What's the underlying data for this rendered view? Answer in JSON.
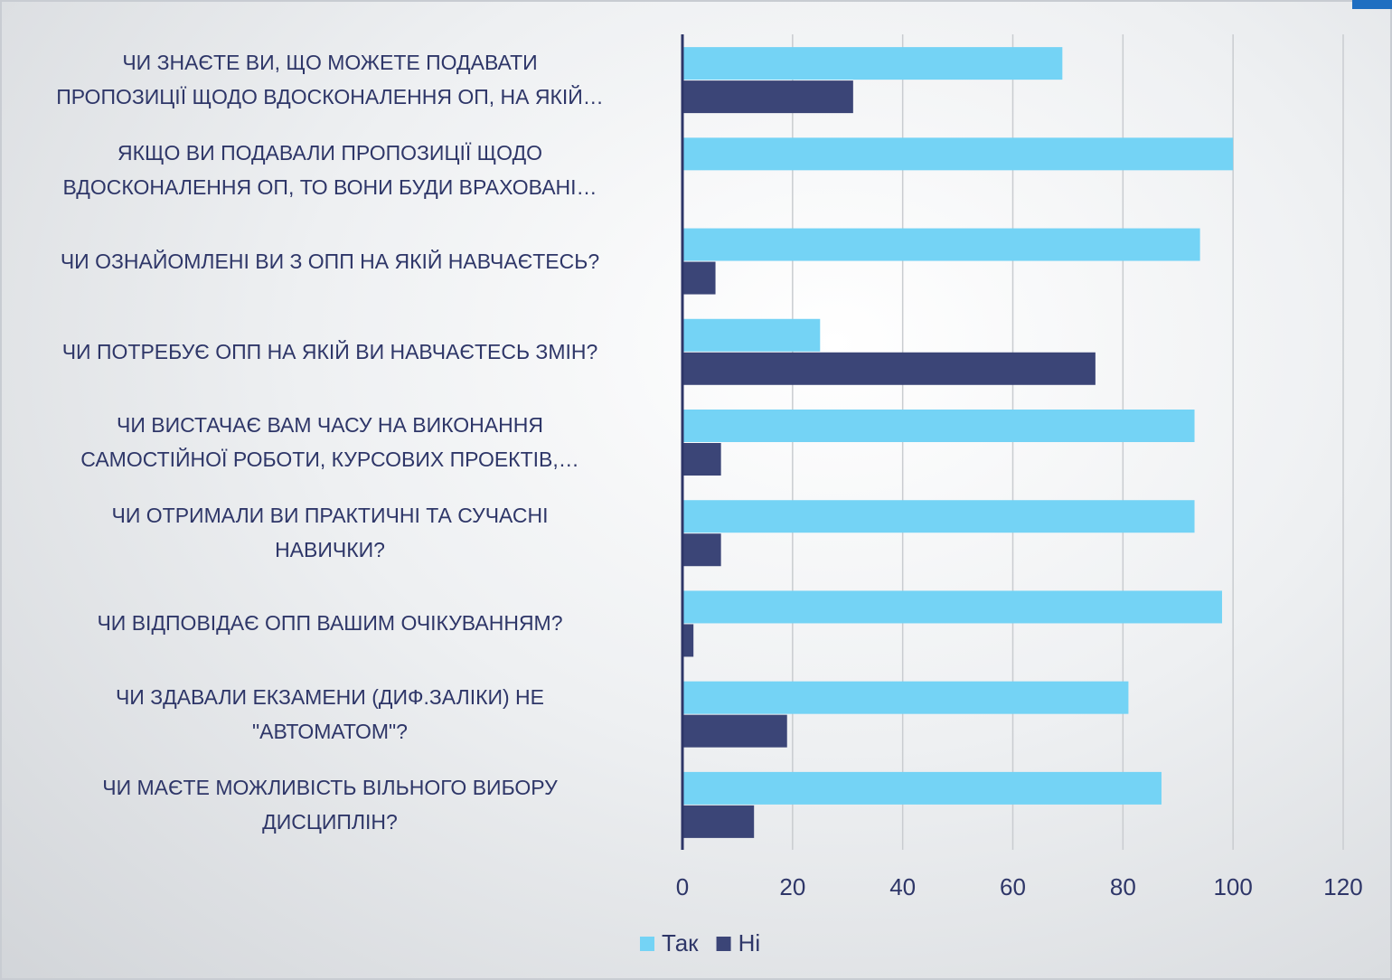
{
  "chart_data": {
    "type": "bar",
    "orientation": "horizontal",
    "categories": [
      "ЧИ ЗНАЄТЕ ВИ, ЩО МОЖЕТЕ ПОДАВАТИ\nПРОПОЗИЦІЇ ЩОДО ВДОСКОНАЛЕННЯ ОП, НА ЯКІЙ…",
      "ЯКЩО ВИ ПОДАВАЛИ ПРОПОЗИЦІЇ ЩОДО\nВДОСКОНАЛЕННЯ ОП, ТО ВОНИ БУДИ ВРАХОВАНІ…",
      "ЧИ ОЗНАЙОМЛЕНІ ВИ З ОПП НА ЯКІЙ НАВЧАЄТЕСЬ?",
      "ЧИ ПОТРЕБУЄ ОПП НА ЯКІЙ ВИ НАВЧАЄТЕСЬ ЗМІН?",
      "ЧИ ВИСТАЧАЄ ВАМ ЧАСУ НА ВИКОНАННЯ\nСАМОСТІЙНОЇ РОБОТИ, КУРСОВИХ ПРОЕКТІВ,…",
      "ЧИ ОТРИМАЛИ ВИ ПРАКТИЧНІ ТА СУЧАСНІ\nНАВИЧКИ?",
      "ЧИ ВІДПОВІДАЄ ОПП ВАШИМ ОЧІКУВАННЯМ?",
      "ЧИ ЗДАВАЛИ ЕКЗАМЕНИ (ДИФ.ЗАЛІКИ) НЕ\n\"АВТОМАТОМ\"?",
      "ЧИ МАЄТЕ МОЖЛИВІСТЬ ВІЛЬНОГО ВИБОРУ\nДИСЦИПЛІН?"
    ],
    "series": [
      {
        "name": "Так",
        "color": "#74d3f5",
        "values": [
          69,
          100,
          94,
          25,
          93,
          93,
          98,
          81,
          87
        ]
      },
      {
        "name": "Ні",
        "color": "#3b4577",
        "values": [
          31,
          0,
          6,
          75,
          7,
          7,
          2,
          19,
          13
        ]
      }
    ],
    "xlim": [
      0,
      120
    ],
    "xticks": [
      0,
      20,
      40,
      60,
      80,
      100,
      120
    ],
    "grid": true,
    "legend": "bottom"
  }
}
